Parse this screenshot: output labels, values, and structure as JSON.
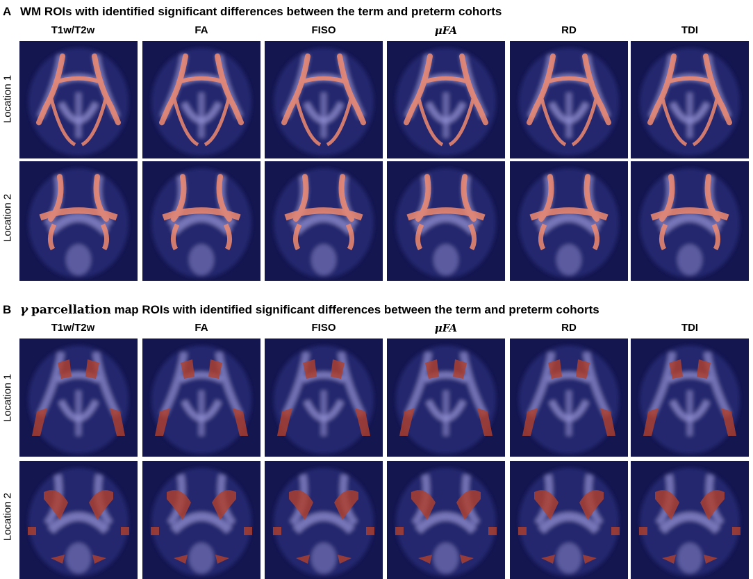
{
  "panels": [
    {
      "letter": "A",
      "title": "WM ROIs with identified significant differences between the term and preterm cohorts",
      "columns": [
        "T1w/T2w",
        "FA",
        "FISO",
        "μFA",
        "RD",
        "TDI"
      ],
      "rows": [
        "Location 1",
        "Location 2"
      ]
    },
    {
      "letter": "B",
      "title_symbol": "γ",
      "title_serif": "parcellation",
      "title": "map ROIs with identified significant differences between the term and preterm cohorts",
      "columns": [
        "T1w/T2w",
        "FA",
        "FISO",
        "μFA",
        "RD",
        "TDI"
      ],
      "rows": [
        "Location 1",
        "Location 2"
      ]
    }
  ],
  "colors": {
    "background": "#141650",
    "white_matter": "#a9a6ea",
    "wm_roi": "#f08a70",
    "parcel_roi": "#b2402c",
    "significant_increase": "#f0e020",
    "significant_decrease": "#30d8e0"
  }
}
